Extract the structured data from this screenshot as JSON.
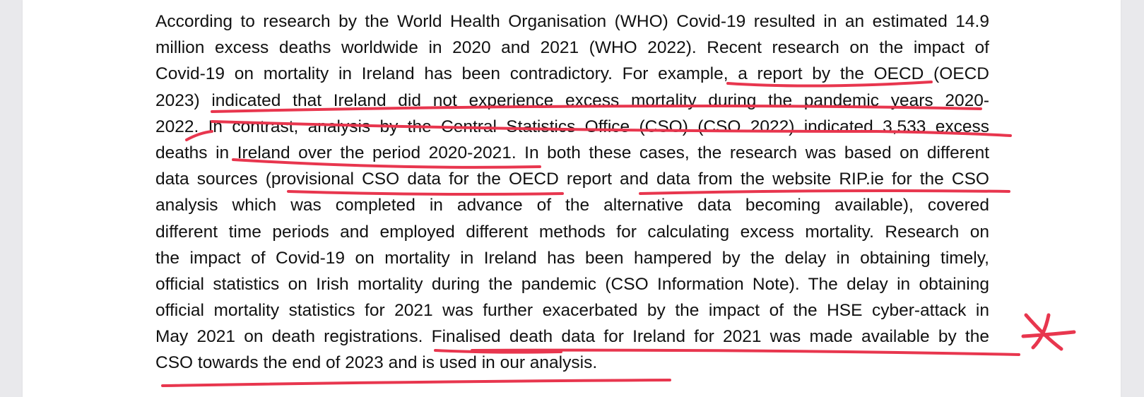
{
  "document": {
    "lines": [
      "According to research by the World Health Organisation (WHO) Covid-19 resulted in an estimated 14.9",
      "million excess deaths worldwide in 2020 and 2021 (WHO 2022). Recent research on the impact of",
      "Covid-19 on mortality in Ireland has been contradictory. For example, a report by the OECD (OECD",
      "2023) indicated that Ireland did not experience excess mortality during the pandemic years 2020-",
      "2022. In contrast, analysis by the Central Statistics Office (CSO) (CSO 2022) indicated 3,533 excess",
      "deaths in Ireland over the period 2020-2021. In both these cases, the research was based on different",
      "data sources (provisional CSO data for the OECD report and data from the website RIP.ie for the CSO",
      "analysis which was completed in advance of the alternative data becoming available), covered",
      "different time periods and employed different methods for calculating excess mortality. Research on",
      "the impact of Covid-19 on mortality in Ireland has been hampered by the delay in obtaining timely,",
      "official statistics on Irish mortality during the pandemic (CSO Information Note). The delay in obtaining",
      "official mortality statistics for 2021 was further exacerbated by the impact of the HSE cyber-attack in",
      "May 2021 on death registrations. Finalised death data for Ireland for 2021 was made available by the",
      "CSO towards the end of 2023 and is used in our analysis."
    ]
  },
  "annotations": {
    "ink_color": "#e8364e",
    "mark_symbol": "asterisk"
  }
}
